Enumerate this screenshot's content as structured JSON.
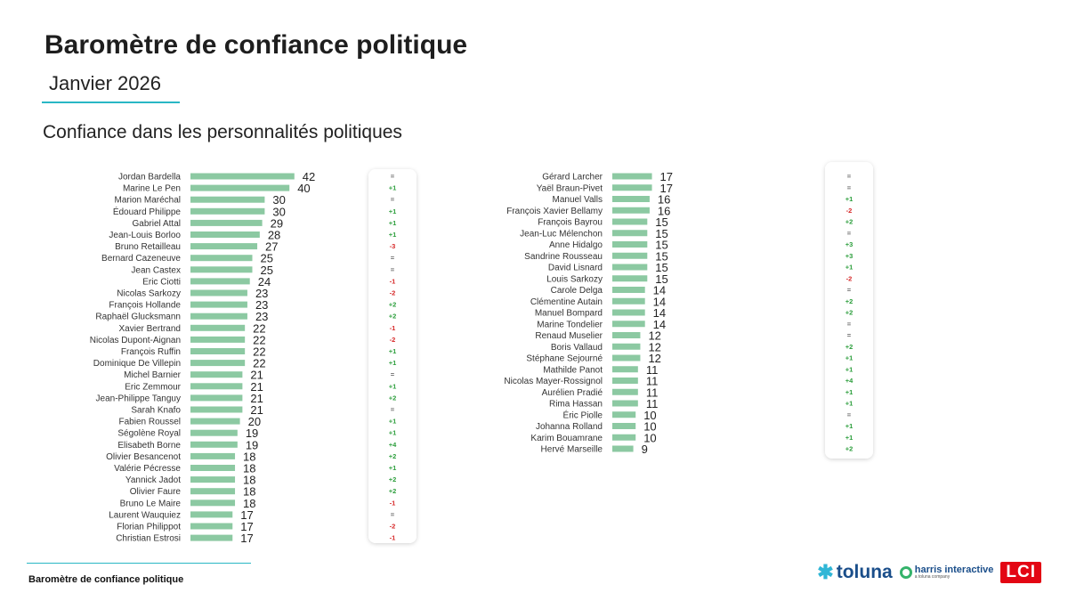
{
  "header": {
    "title": "Baromètre de confiance politique",
    "subtitle": "Janvier 2026",
    "section": "Confiance dans les personnalités politiques"
  },
  "footer": {
    "label": "Baromètre de confiance politique"
  },
  "logos": {
    "toluna": "toluna",
    "harris_name": "harris interactive",
    "harris_sub": "a toluna company",
    "lci": "LCI"
  },
  "colors": {
    "bar": "#8cc9a2",
    "positive": "#2a9d3a",
    "negative": "#d62828",
    "neutral": "#555555",
    "accent": "#29b7c5"
  },
  "chart_data": [
    {
      "type": "bar",
      "orientation": "horizontal",
      "categories": [
        "Jordan Bardella",
        "Marine Le Pen",
        "Marion Maréchal",
        "Édouard Philippe",
        "Gabriel Attal",
        "Jean-Louis Borloo",
        "Bruno Retailleau",
        "Bernard Cazeneuve",
        "Jean Castex",
        "Eric Ciotti",
        "Nicolas Sarkozy",
        "François Hollande",
        "Raphaël Glucksmann",
        "Xavier Bertrand",
        "Nicolas Dupont-Aignan",
        "François Ruffin",
        "Dominique De Villepin",
        "Michel Barnier",
        "Eric Zemmour",
        "Jean-Philippe Tanguy",
        "Sarah Knafo",
        "Fabien Roussel",
        "Ségolène Royal",
        "Elisabeth Borne",
        "Olivier Besancenot",
        "Valérie Pécresse",
        "Yannick Jadot",
        "Olivier Faure",
        "Bruno Le Maire",
        "Laurent Wauquiez",
        "Florian Philippot",
        "Christian Estrosi"
      ],
      "values": [
        42,
        40,
        30,
        30,
        29,
        28,
        27,
        25,
        25,
        24,
        23,
        23,
        23,
        22,
        22,
        22,
        22,
        21,
        21,
        21,
        21,
        20,
        19,
        19,
        18,
        18,
        18,
        18,
        18,
        17,
        17,
        17
      ],
      "changes": [
        "=",
        "+1",
        "=",
        "+1",
        "+1",
        "+1",
        "-3",
        "=",
        "=",
        "-1",
        "-2",
        "+2",
        "+2",
        "-1",
        "-2",
        "+1",
        "+1",
        "=",
        "+1",
        "+2",
        "=",
        "+1",
        "+1",
        "+4",
        "+2",
        "+1",
        "+2",
        "+2",
        "-1",
        "=",
        "-2",
        "-1"
      ]
    },
    {
      "type": "bar",
      "orientation": "horizontal",
      "categories": [
        "Gérard Larcher",
        "Yaël Braun-Pivet",
        "Manuel Valls",
        "François Xavier Bellamy",
        "François Bayrou",
        "Jean-Luc Mélenchon",
        "Anne Hidalgo",
        "Sandrine Rousseau",
        "David Lisnard",
        "Louis Sarkozy",
        "Carole Delga",
        "Clémentine Autain",
        "Manuel Bompard",
        "Marine Tondelier",
        "Renaud Muselier",
        "Boris Vallaud",
        "Stéphane Sejourné",
        "Mathilde Panot",
        "Nicolas Mayer-Rossignol",
        "Aurélien Pradié",
        "Rima Hassan",
        "Éric Piolle",
        "Johanna Rolland",
        "Karim Bouamrane",
        "Hervé Marseille"
      ],
      "values": [
        17,
        17,
        16,
        16,
        15,
        15,
        15,
        15,
        15,
        15,
        14,
        14,
        14,
        14,
        12,
        12,
        12,
        11,
        11,
        11,
        11,
        10,
        10,
        10,
        9
      ],
      "changes": [
        "=",
        "=",
        "+1",
        "-2",
        "+2",
        "=",
        "+3",
        "+3",
        "+1",
        "-2",
        "=",
        "+2",
        "+2",
        "=",
        "=",
        "+2",
        "+1",
        "+1",
        "+4",
        "+1",
        "+1",
        "=",
        "+1",
        "+1",
        "+2"
      ]
    }
  ]
}
